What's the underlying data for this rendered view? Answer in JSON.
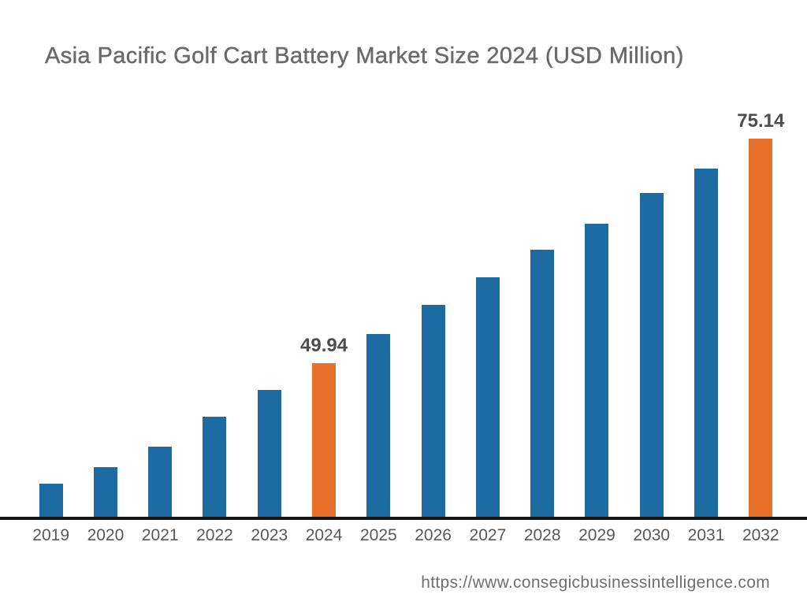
{
  "header": {
    "title": "Asia Pacific Golf Cart Battery Market Size 2024 (USD Million)"
  },
  "footer": {
    "url": "https://www.consegicbusinessintelligence.com"
  },
  "colors": {
    "bar_default": "#1e6aa3",
    "bar_highlight": "#e7712b",
    "axis": "#141414",
    "title_text": "#6a6a6a",
    "value_label_text": "#4d4d4d",
    "tick_text": "#585858",
    "url_text": "#6f6f6f"
  },
  "chart_data": {
    "type": "bar",
    "title": "Asia Pacific Golf Cart Battery Market Size 2024 (USD Million)",
    "unit": "USD Million",
    "categories": [
      "2019",
      "2020",
      "2021",
      "2022",
      "2023",
      "2024",
      "2025",
      "2026",
      "2027",
      "2028",
      "2029",
      "2030",
      "2031",
      "2032"
    ],
    "values": [
      36.5,
      38.3,
      40.6,
      44.0,
      47.0,
      49.94,
      53.2,
      56.5,
      59.6,
      62.7,
      65.6,
      69.0,
      71.8,
      75.14
    ],
    "value_labels": [
      "",
      "",
      "",
      "",
      "",
      "49.94",
      "",
      "",
      "",
      "",
      "",
      "",
      "",
      "75.14"
    ],
    "labeled_indices": [
      5,
      13
    ],
    "highlighted_indices": [
      5,
      13
    ],
    "xlabel": "",
    "ylabel": "",
    "ylim": [
      32.75,
      76
    ],
    "grid": false,
    "legend": false,
    "y_axis_shown": false,
    "baseline_note": "bars rise from an unlabeled baseline; only 2024 and 2032 carry data labels"
  }
}
